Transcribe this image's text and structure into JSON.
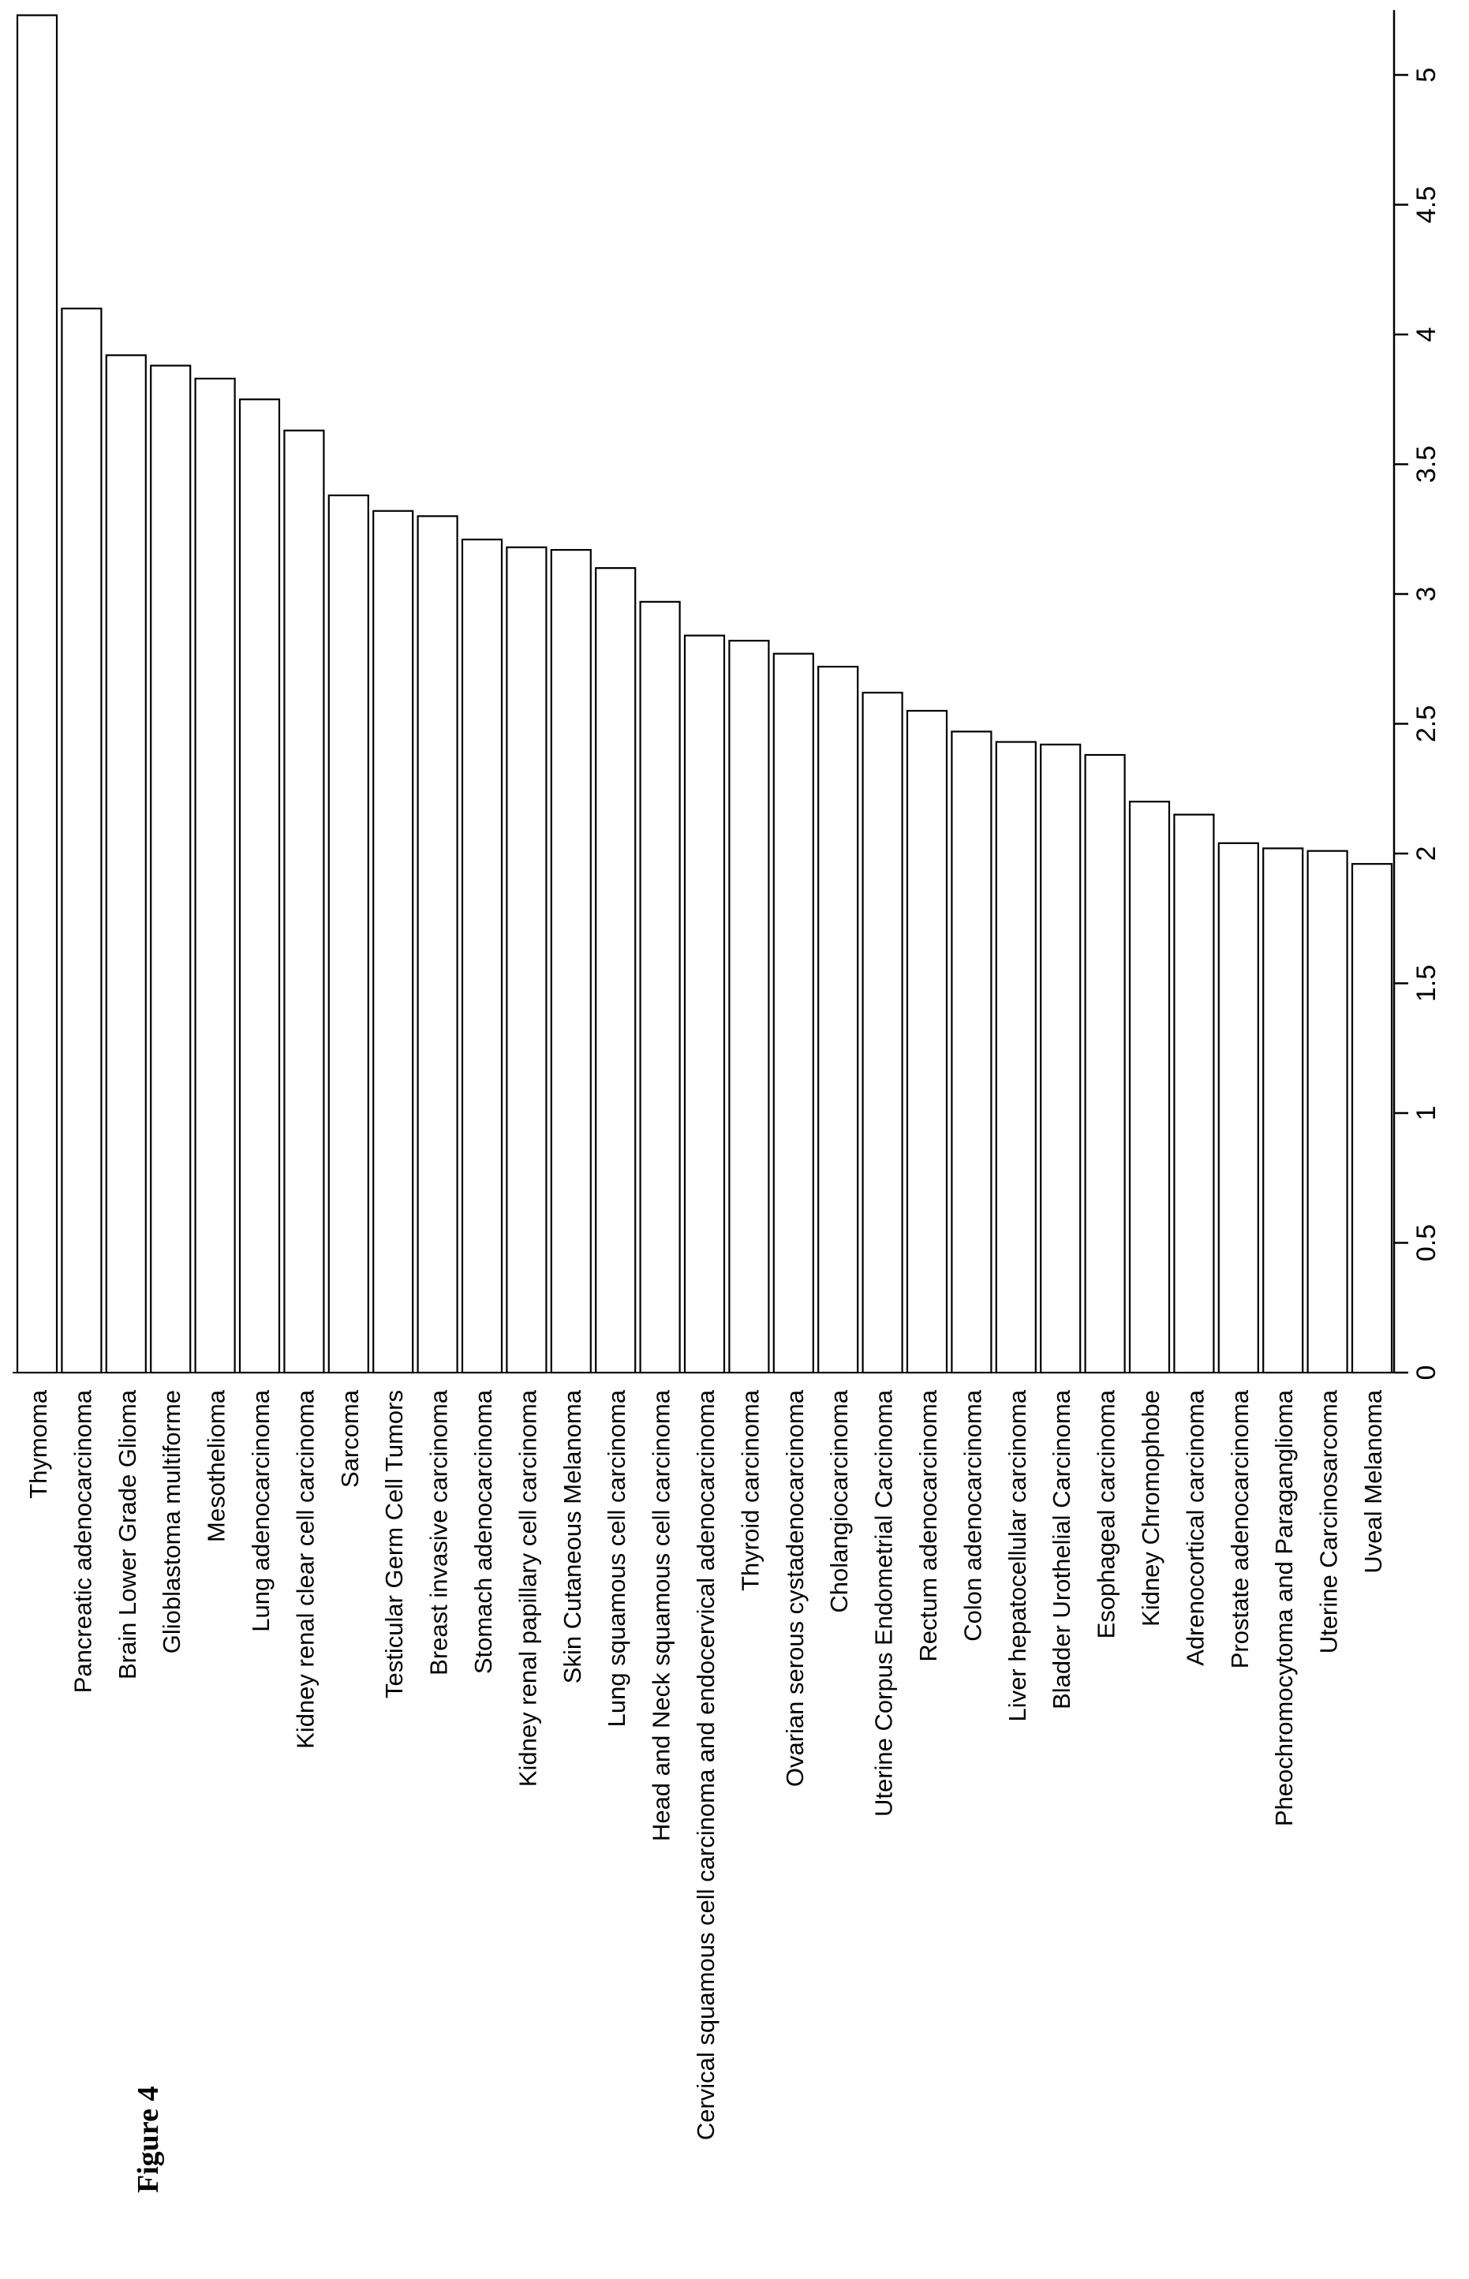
{
  "figure_label": "Figure 4",
  "chart_data": {
    "type": "bar",
    "orientation": "rotated (horizontal bars drawn from top)",
    "title": "",
    "xlabel": "",
    "ylabel": "",
    "ylim": [
      0,
      5.25
    ],
    "yticks": [
      0,
      0.5,
      1,
      1.5,
      2,
      2.5,
      3,
      3.5,
      4,
      4.5,
      5
    ],
    "grid": false,
    "legend": "none",
    "bar_fill": "#ffffff",
    "bar_stroke": "#000000",
    "categories": [
      "Thymoma",
      "Pancreatic adenocarcinoma",
      "Brain Lower Grade Glioma",
      "Glioblastoma multiforme",
      "Mesothelioma",
      "Lung adenocarcinoma",
      "Kidney renal clear cell carcinoma",
      "Sarcoma",
      "Testicular Germ Cell Tumors",
      "Breast invasive carcinoma",
      "Stomach adenocarcinoma",
      "Kidney renal papillary cell carcinoma",
      "Skin Cutaneous Melanoma",
      "Lung squamous cell carcinoma",
      "Head and Neck squamous cell carcinoma",
      "Cervical squamous cell carcinoma and endocervical adenocarcinoma",
      "Thyroid carcinoma",
      "Ovarian serous cystadenocarcinoma",
      "Cholangiocarcinoma",
      "Uterine Corpus Endometrial Carcinoma",
      "Rectum adenocarcinoma",
      "Colon adenocarcinoma",
      "Liver hepatocellular carcinoma",
      "Bladder Urothelial Carcinoma",
      "Esophageal carcinoma",
      "Kidney Chromophobe",
      "Adrenocortical carcinoma",
      "Prostate adenocarcinoma",
      "Pheochromocytoma and Paraganglioma",
      "Uterine Carcinosarcoma",
      "Uveal Melanoma"
    ],
    "values": [
      5.23,
      4.1,
      3.92,
      3.88,
      3.83,
      3.75,
      3.63,
      3.38,
      3.32,
      3.3,
      3.21,
      3.18,
      3.17,
      3.1,
      2.97,
      2.84,
      2.82,
      2.77,
      2.72,
      2.62,
      2.55,
      2.47,
      2.43,
      2.42,
      2.38,
      2.2,
      2.15,
      2.04,
      2.02,
      2.01,
      1.96
    ]
  }
}
